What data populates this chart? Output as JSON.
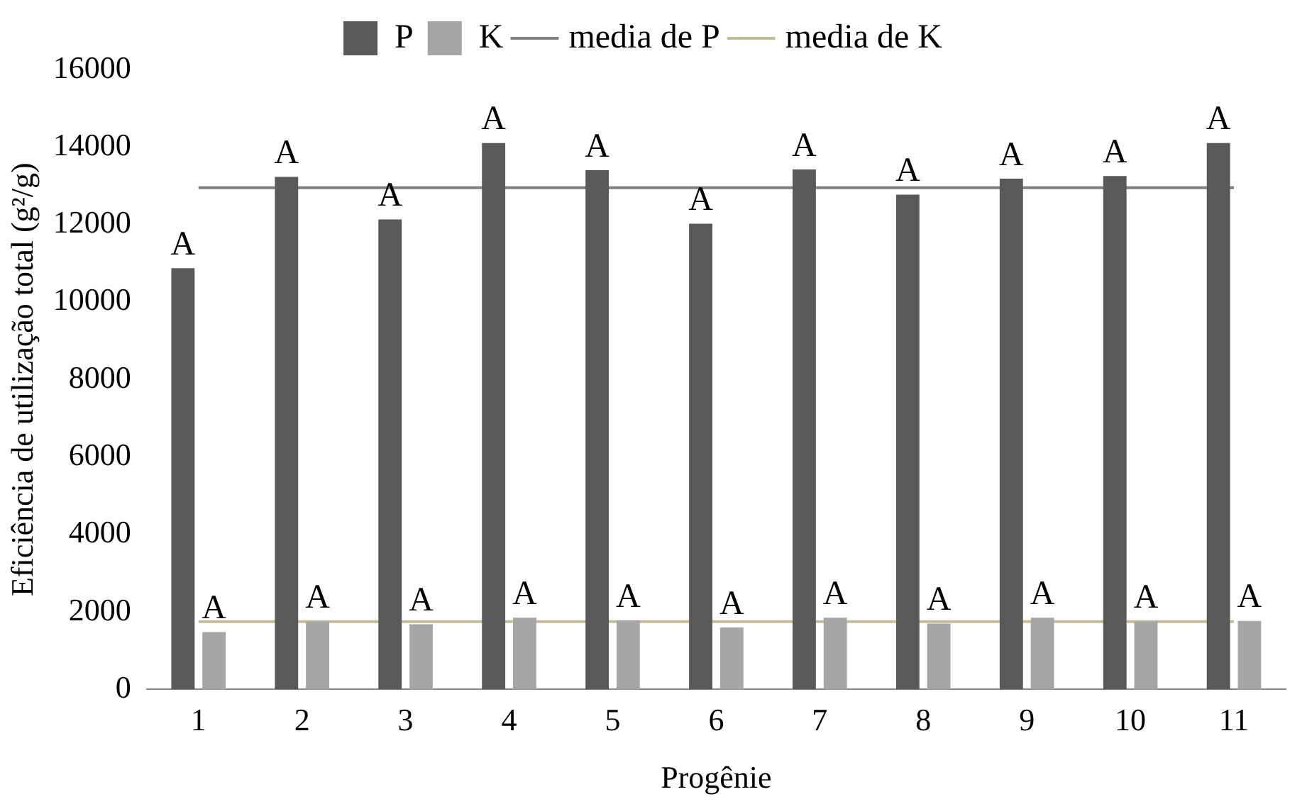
{
  "chart_data": {
    "type": "bar",
    "xlabel": "Progênie",
    "ylabel": "Eficiência de utilização total (g²/g)",
    "categories": [
      "1",
      "2",
      "3",
      "4",
      "5",
      "6",
      "7",
      "8",
      "9",
      "10",
      "11"
    ],
    "series": [
      {
        "name": "P",
        "color": "#595959",
        "values": [
          10870,
          13230,
          12130,
          14100,
          13400,
          12020,
          13420,
          12770,
          13180,
          13250,
          14100
        ],
        "value_labels": [
          "A",
          "A",
          "A",
          "A",
          "A",
          "A",
          "A",
          "A",
          "A",
          "A",
          "A"
        ]
      },
      {
        "name": "K",
        "color": "#a6a6a6",
        "values": [
          1480,
          1750,
          1680,
          1850,
          1780,
          1600,
          1850,
          1700,
          1850,
          1750,
          1770
        ],
        "value_labels": [
          "A",
          "A",
          "A",
          "A",
          "A",
          "A",
          "A",
          "A",
          "A",
          "A",
          "A"
        ]
      },
      {
        "name": "media de P",
        "type": "line",
        "color": "#7f7f7f",
        "values": [
          12950,
          12950,
          12950,
          12950,
          12950,
          12950,
          12950,
          12950,
          12950,
          12950,
          12950
        ]
      },
      {
        "name": "media de K",
        "type": "line",
        "color": "#c4bd97",
        "values": [
          1750,
          1750,
          1750,
          1750,
          1750,
          1750,
          1750,
          1750,
          1750,
          1750,
          1750
        ]
      }
    ],
    "ylim": [
      0,
      16000
    ],
    "yticks": [
      0,
      2000,
      4000,
      6000,
      8000,
      10000,
      12000,
      14000,
      16000
    ],
    "grid": false,
    "legend": "top"
  }
}
